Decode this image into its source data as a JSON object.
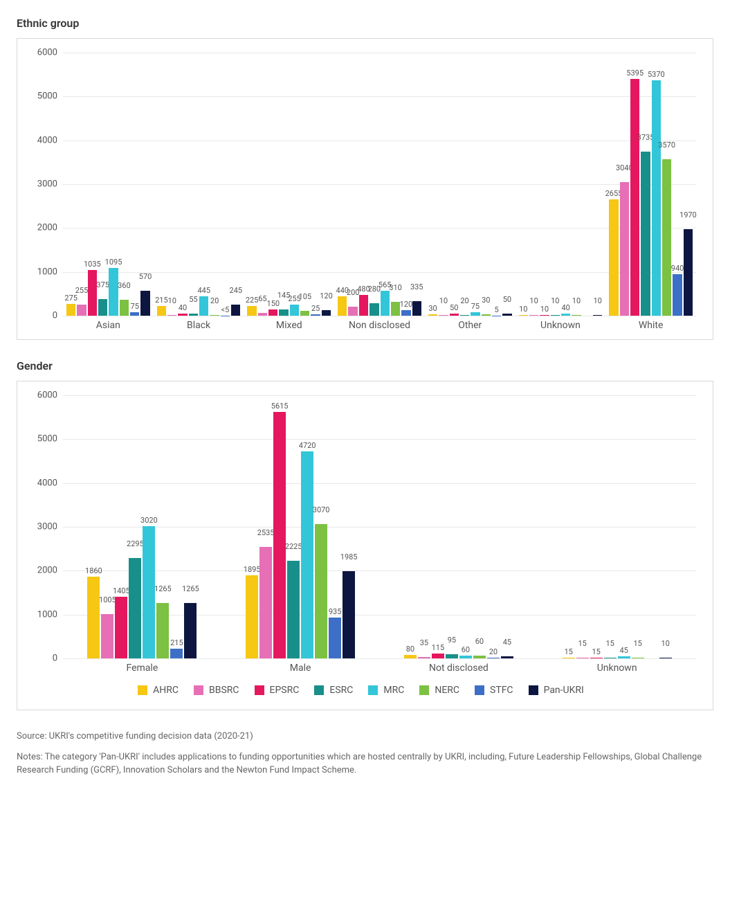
{
  "series": [
    {
      "key": "AHRC",
      "label": "AHRC",
      "color": "#f6c713"
    },
    {
      "key": "BBSRC",
      "label": "BBSRC",
      "color": "#e66fb6"
    },
    {
      "key": "EPSRC",
      "label": "EPSRC",
      "color": "#e5175e"
    },
    {
      "key": "ESRC",
      "label": "ESRC",
      "color": "#188f8a"
    },
    {
      "key": "MRC",
      "label": "MRC",
      "color": "#33c6d9"
    },
    {
      "key": "NERC",
      "label": "NERC",
      "color": "#7cc142"
    },
    {
      "key": "STFC",
      "label": "STFC",
      "color": "#3d6fc7"
    },
    {
      "key": "PanUKRI",
      "label": "Pan-UKRI",
      "color": "#0d1640"
    }
  ],
  "charts": {
    "ethnic": {
      "title": "Ethnic group",
      "ylim": [
        0,
        6000
      ],
      "ytick_step": 1000,
      "grid_color": "#e8e8e8",
      "background_color": "#ffffff",
      "label_fontsize": 11,
      "axis_fontsize": 13,
      "categories": [
        "Asian",
        "Black",
        "Mixed",
        "Non disclosed",
        "Other",
        "Unknown",
        "White"
      ],
      "values": {
        "Asian": {
          "AHRC": 275,
          "BBSRC": 255,
          "EPSRC": 1035,
          "ESRC": 375,
          "MRC": 1095,
          "NERC": 360,
          "STFC": 75,
          "PanUKRI": 570
        },
        "Black": {
          "AHRC": 215,
          "BBSRC": 10,
          "EPSRC": 40,
          "ESRC": 55,
          "MRC": 445,
          "NERC": 20,
          "STFC": "<5",
          "PanUKRI": 245
        },
        "Mixed": {
          "AHRC": 225,
          "BBSRC": 65,
          "EPSRC": 150,
          "ESRC": 145,
          "MRC": 255,
          "NERC": 105,
          "STFC": 25,
          "PanUKRI": 120
        },
        "Non disclosed": {
          "AHRC": 440,
          "BBSRC": 200,
          "EPSRC": 480,
          "ESRC": 280,
          "MRC": 565,
          "NERC": 310,
          "STFC": 120,
          "PanUKRI": 335
        },
        "Other": {
          "AHRC": 30,
          "BBSRC": 10,
          "EPSRC": 50,
          "ESRC": 20,
          "MRC": 75,
          "NERC": 30,
          "STFC": 5,
          "PanUKRI": 50
        },
        "Unknown": {
          "AHRC": 10,
          "BBSRC": 10,
          "EPSRC": 10,
          "ESRC": 10,
          "MRC": 40,
          "NERC": 10,
          "STFC": null,
          "PanUKRI": 10
        },
        "White": {
          "AHRC": 2655,
          "BBSRC": 3040,
          "EPSRC": 5395,
          "ESRC": 3735,
          "MRC": 5370,
          "NERC": 3570,
          "STFC": 940,
          "PanUKRI": 1970
        }
      }
    },
    "gender": {
      "title": "Gender",
      "ylim": [
        0,
        6000
      ],
      "ytick_step": 1000,
      "grid_color": "#e8e8e8",
      "background_color": "#ffffff",
      "label_fontsize": 11,
      "axis_fontsize": 13,
      "categories": [
        "Female",
        "Male",
        "Not disclosed",
        "Unknown"
      ],
      "values": {
        "Female": {
          "AHRC": 1860,
          "BBSRC": 1005,
          "EPSRC": 1405,
          "ESRC": 2295,
          "MRC": 3020,
          "NERC": 1265,
          "STFC": 215,
          "PanUKRI": 1265
        },
        "Male": {
          "AHRC": 1895,
          "BBSRC": 2535,
          "EPSRC": 5615,
          "ESRC": 2225,
          "MRC": 4720,
          "NERC": 3070,
          "STFC": 935,
          "PanUKRI": 1985
        },
        "Not disclosed": {
          "AHRC": 80,
          "BBSRC": 35,
          "EPSRC": 115,
          "ESRC": 95,
          "MRC": 60,
          "NERC": 60,
          "STFC": 20,
          "PanUKRI": 45
        },
        "Unknown": {
          "AHRC": 15,
          "BBSRC": 15,
          "EPSRC": 15,
          "ESRC": 15,
          "MRC": 45,
          "NERC": 15,
          "STFC": null,
          "PanUKRI": 10
        }
      }
    }
  },
  "footnotes": {
    "source": "Source: UKRI's competitive funding decision data (2020-21)",
    "notes": "Notes: The category 'Pan-UKRI' includes applications to funding opportunities which are hosted centrally by UKRI, including, Future Leadership Fellowships, Global Challenge Research Funding (GCRF), Innovation Scholars and the Newton Fund Impact Scheme."
  }
}
